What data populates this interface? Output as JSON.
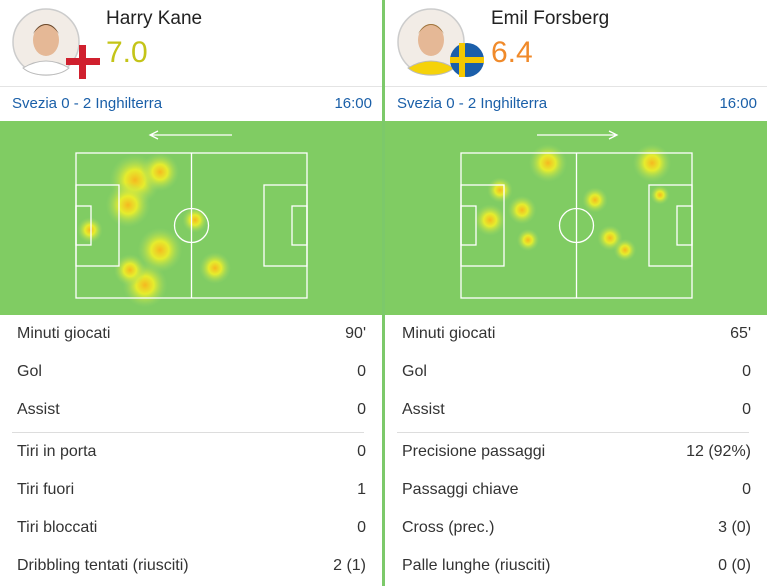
{
  "players": [
    {
      "name": "Harry Kane",
      "rating": "7.0",
      "match": "Svezia 0 - 2 Inghilterra",
      "time": "16:00",
      "stats": [
        {
          "label": "Minuti giocati",
          "value": "90'"
        },
        {
          "label": "Gol",
          "value": "0"
        },
        {
          "label": "Assist",
          "value": "0"
        },
        {
          "label": "Tiri in porta",
          "value": "0"
        },
        {
          "label": "Tiri fuori",
          "value": "1"
        },
        {
          "label": "Tiri bloccati",
          "value": "0"
        },
        {
          "label": "Dribbling tentati (riusciti)",
          "value": "2 (1)"
        }
      ]
    },
    {
      "name": "Emil Forsberg",
      "rating": "6.4",
      "match": "Svezia 0 - 2 Inghilterra",
      "time": "16:00",
      "stats": [
        {
          "label": "Minuti giocati",
          "value": "65'"
        },
        {
          "label": "Gol",
          "value": "0"
        },
        {
          "label": "Assist",
          "value": "0"
        },
        {
          "label": "Precisione passaggi",
          "value": "12 (92%)"
        },
        {
          "label": "Passaggi chiave",
          "value": "0"
        },
        {
          "label": "Cross (prec.)",
          "value": "3 (0)"
        },
        {
          "label": "Palle lunghe (riusciti)",
          "value": "0 (0)"
        }
      ]
    }
  ]
}
